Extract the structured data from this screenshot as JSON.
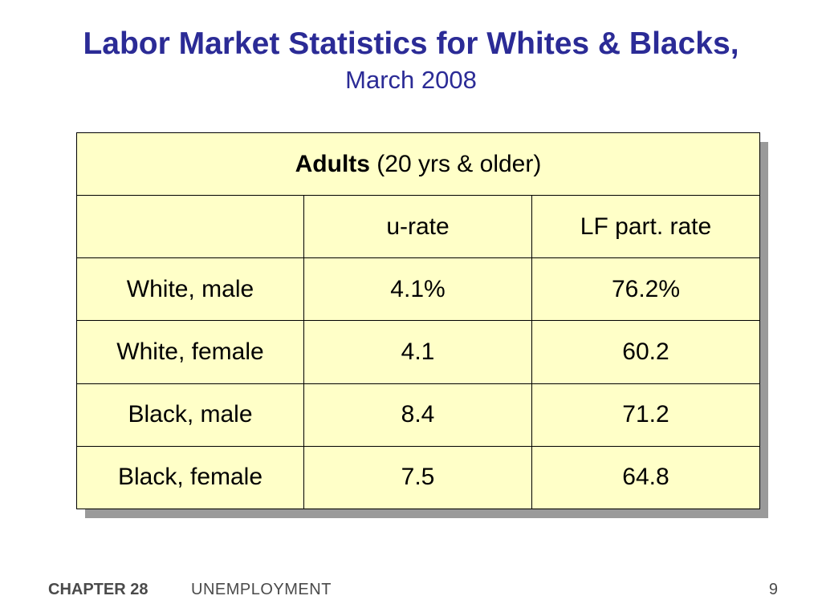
{
  "slide": {
    "title": "Labor Market Statistics for Whites & Blacks,",
    "subtitle": "March 2008"
  },
  "table": {
    "header_bold": "Adults",
    "header_rest": " (20 yrs & older)",
    "columns": [
      "",
      "u-rate",
      "LF part. rate"
    ],
    "rows": [
      {
        "label": "White, male",
        "u_rate": "4.1%",
        "lf_rate": "76.2%"
      },
      {
        "label": "White, female",
        "u_rate": "4.1",
        "lf_rate": "60.2"
      },
      {
        "label": "Black, male",
        "u_rate": "8.4",
        "lf_rate": "71.2"
      },
      {
        "label": "Black, female",
        "u_rate": "7.5",
        "lf_rate": "64.8"
      }
    ]
  },
  "footer": {
    "chapter": "CHAPTER 28",
    "topic": "UNEMPLOYMENT",
    "page": "9"
  },
  "colors": {
    "title": "#2b2b96",
    "table_fill": "#ffffc8",
    "shadow": "#9a9a9a",
    "footer_text": "#4a4a4a"
  }
}
